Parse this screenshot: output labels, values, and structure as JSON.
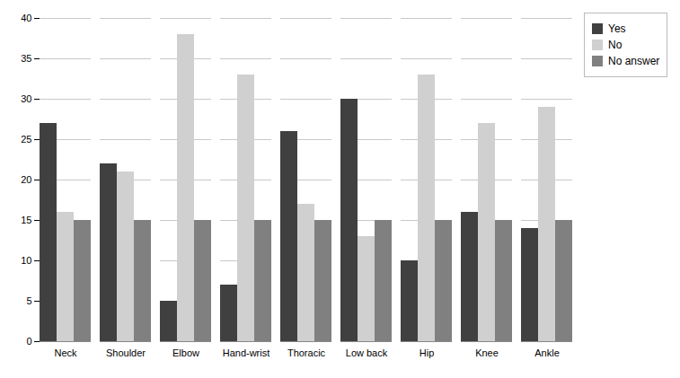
{
  "chart_data": {
    "type": "bar",
    "categories": [
      "Neck",
      "Shoulder",
      "Elbow",
      "Hand-wrist",
      "Thoracic",
      "Low back",
      "Hip",
      "Knee",
      "Ankle"
    ],
    "series": [
      {
        "name": "Yes",
        "color": "#404040",
        "values": [
          27,
          22,
          5,
          7,
          26,
          30,
          10,
          16,
          14
        ]
      },
      {
        "name": "No",
        "color": "#d0d0d0",
        "values": [
          16,
          21,
          38,
          33,
          17,
          13,
          33,
          27,
          29
        ]
      },
      {
        "name": "No answer",
        "color": "#808080",
        "values": [
          15,
          15,
          15,
          15,
          15,
          15,
          15,
          15,
          15
        ]
      }
    ],
    "ylim": [
      0,
      40
    ],
    "yticks": [
      0,
      5,
      10,
      15,
      20,
      25,
      30,
      35,
      40
    ],
    "grid": true,
    "legend": "right"
  }
}
